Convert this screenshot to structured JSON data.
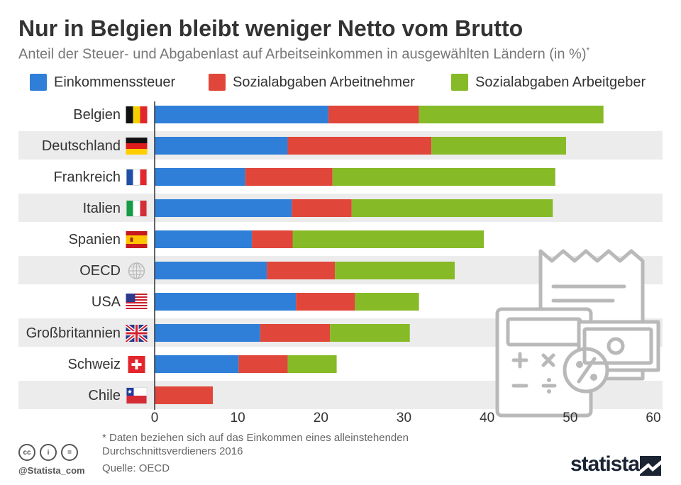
{
  "title": "Nur in Belgien bleibt weniger Netto vom Brutto",
  "subtitle": "Anteil der Steuer- und Abgabenlast auf Arbeitseinkommen in ausgewählten Ländern (in %)",
  "subtitle_mark": "*",
  "colors": {
    "income_tax": "#2f7fd9",
    "employee_social": "#e0463a",
    "employer_social": "#86ba26",
    "band": "#ececec"
  },
  "chart_data": {
    "type": "bar",
    "orientation": "horizontal",
    "stacked": true,
    "categories": [
      "Belgien",
      "Deutschland",
      "Frankreich",
      "Italien",
      "Spanien",
      "OECD",
      "USA",
      "Großbritannien",
      "Schweiz",
      "Chile"
    ],
    "series": [
      {
        "name": "Einkommenssteuer",
        "values": [
          20.9,
          16.0,
          10.9,
          16.5,
          11.7,
          13.5,
          17.0,
          12.7,
          10.1,
          0
        ]
      },
      {
        "name": "Sozialabgaben Arbeitnehmer",
        "values": [
          10.9,
          17.3,
          10.5,
          7.2,
          4.9,
          8.2,
          7.1,
          8.4,
          5.9,
          7.0
        ]
      },
      {
        "name": "Sozialabgaben Arbeitgeber",
        "values": [
          22.2,
          16.2,
          26.8,
          24.2,
          23.0,
          14.4,
          7.7,
          9.6,
          5.9,
          0
        ]
      }
    ],
    "xlim": [
      0,
      60
    ],
    "xticks": [
      "0",
      "10",
      "20",
      "30",
      "40",
      "50",
      "60"
    ],
    "legend_position": "top"
  },
  "footnote": "* Daten beziehen sich auf das Einkommen eines alleinstehenden Durchschnittsverdieners 2016",
  "source": "Quelle: OECD",
  "cc_icons": [
    "cc",
    "i",
    "="
  ],
  "handle": "@Statista_com",
  "brand": "statista"
}
